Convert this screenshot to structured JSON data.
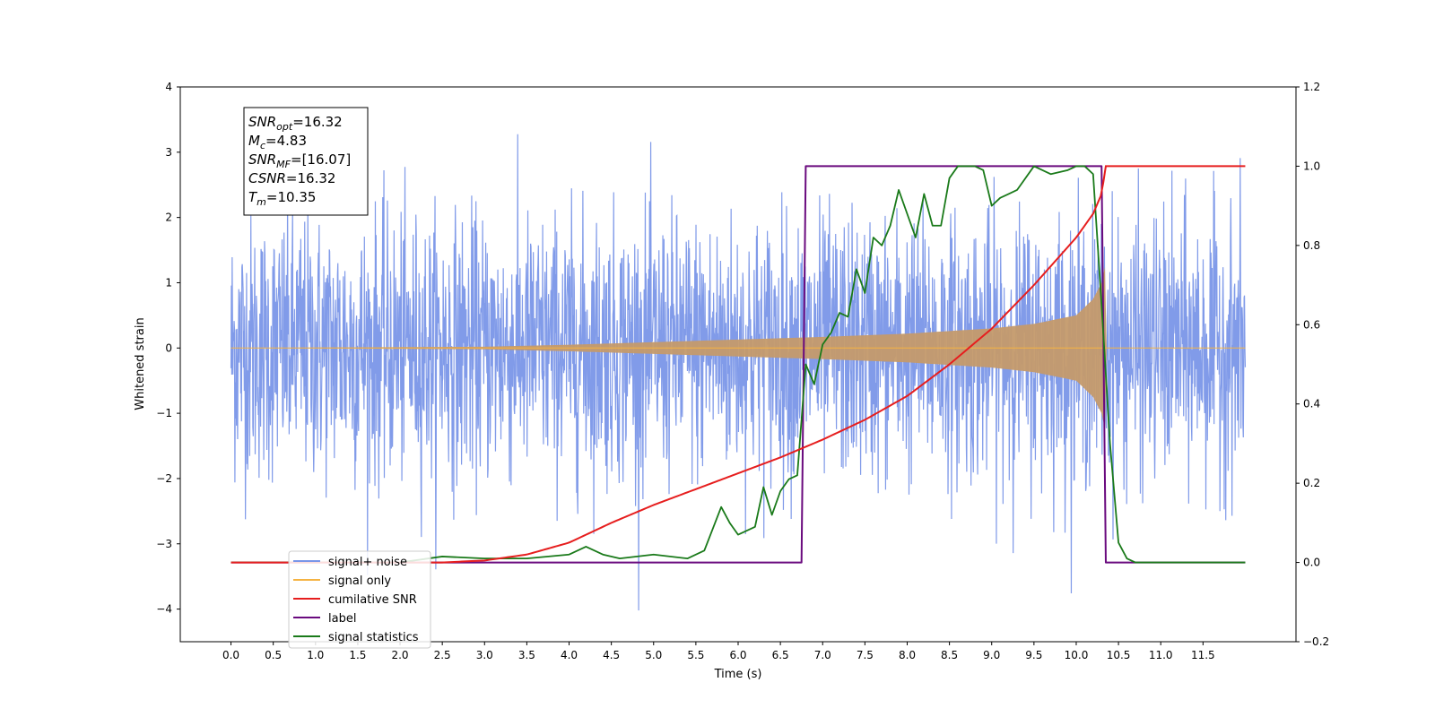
{
  "chart_data": {
    "type": "line",
    "xlabel": "Time (s)",
    "ylabel": "Whitened strain",
    "xlim": [
      -0.6,
      12.6
    ],
    "ylim_left": [
      -4.5,
      4
    ],
    "ylim_right": [
      -0.2,
      1.2
    ],
    "x_ticks": [
      "0.0",
      "0.5",
      "1.0",
      "1.5",
      "2.0",
      "2.5",
      "3.0",
      "3.5",
      "4.0",
      "4.5",
      "5.0",
      "5.5",
      "6.0",
      "6.5",
      "7.0",
      "7.5",
      "8.0",
      "8.5",
      "9.0",
      "9.5",
      "10.0",
      "10.5",
      "11.0",
      "11.5"
    ],
    "y_ticks_left": [
      "4",
      "3",
      "2",
      "1",
      "0",
      "−1",
      "−2",
      "−3",
      "−4"
    ],
    "y_ticks_right": [
      "1.2",
      "1.0",
      "0.8",
      "0.6",
      "0.4",
      "0.2",
      "0.0",
      "−0.2"
    ],
    "annotation": {
      "lines": [
        {
          "main": "SNR",
          "sub": "opt",
          "value": "=16.32"
        },
        {
          "main": "M",
          "sub": "c",
          "value": "=4.83"
        },
        {
          "main": "SNR",
          "sub": "MF",
          "value": "=[16.07]"
        },
        {
          "main": "CSNR",
          "sub": "",
          "value": "=16.32"
        },
        {
          "main": "T",
          "sub": "m",
          "value": "=10.35"
        }
      ]
    },
    "legend_position": "lower-left",
    "series": [
      {
        "name": "signal+ noise",
        "axis": "left",
        "color": "#7a96e8",
        "x_range": [
          0.0,
          12.0
        ],
        "noise_sigma": 1.0,
        "amplitude_range": [
          -4.1,
          3.6
        ]
      },
      {
        "name": "signal only",
        "axis": "left",
        "color": "#f5b342",
        "x_range": [
          0.0,
          12.0
        ],
        "envelope": {
          "x": [
            0.0,
            3.0,
            4.0,
            5.0,
            6.0,
            7.0,
            8.0,
            9.0,
            9.5,
            10.0,
            10.2,
            10.3,
            10.35,
            10.36,
            12.0
          ],
          "amplitude": [
            0.0,
            0.02,
            0.05,
            0.09,
            0.13,
            0.17,
            0.22,
            0.3,
            0.37,
            0.5,
            0.75,
            1.0,
            1.3,
            0.0,
            0.0
          ]
        }
      },
      {
        "name": "cumilative SNR",
        "axis": "right",
        "color": "#e61e1e",
        "x": [
          0.0,
          2.5,
          3.0,
          3.5,
          4.0,
          4.5,
          5.0,
          5.5,
          6.0,
          6.5,
          7.0,
          7.5,
          8.0,
          8.5,
          9.0,
          9.5,
          10.0,
          10.2,
          10.3,
          10.35,
          12.0
        ],
        "y": [
          0.0,
          0.0,
          0.005,
          0.02,
          0.05,
          0.1,
          0.145,
          0.185,
          0.225,
          0.265,
          0.31,
          0.36,
          0.42,
          0.5,
          0.59,
          0.7,
          0.82,
          0.88,
          0.93,
          1.0,
          1.0
        ]
      },
      {
        "name": "label",
        "axis": "right",
        "color": "#6a0a7e",
        "x": [
          0.0,
          6.75,
          6.8,
          10.3,
          10.35,
          12.0
        ],
        "y": [
          0.0,
          0.0,
          1.0,
          1.0,
          0.0,
          0.0
        ]
      },
      {
        "name": "signal statistics",
        "axis": "right",
        "color": "#1a7a1a",
        "x": [
          0.0,
          2.0,
          2.5,
          3.0,
          3.5,
          4.0,
          4.2,
          4.4,
          4.6,
          5.0,
          5.4,
          5.6,
          5.8,
          5.9,
          6.0,
          6.2,
          6.3,
          6.4,
          6.5,
          6.6,
          6.7,
          6.8,
          6.9,
          7.0,
          7.1,
          7.2,
          7.3,
          7.4,
          7.5,
          7.6,
          7.7,
          7.8,
          7.9,
          8.0,
          8.1,
          8.2,
          8.3,
          8.4,
          8.5,
          8.6,
          8.7,
          8.8,
          8.9,
          9.0,
          9.1,
          9.2,
          9.3,
          9.5,
          9.7,
          9.9,
          10.0,
          10.1,
          10.2,
          10.3,
          10.4,
          10.5,
          10.6,
          10.7,
          10.8,
          11.0,
          11.5,
          12.0
        ],
        "y": [
          0.0,
          0.0,
          0.015,
          0.01,
          0.01,
          0.02,
          0.04,
          0.02,
          0.01,
          0.02,
          0.01,
          0.03,
          0.14,
          0.1,
          0.07,
          0.09,
          0.19,
          0.12,
          0.18,
          0.21,
          0.22,
          0.5,
          0.45,
          0.55,
          0.58,
          0.63,
          0.62,
          0.74,
          0.68,
          0.82,
          0.8,
          0.85,
          0.94,
          0.88,
          0.82,
          0.93,
          0.85,
          0.85,
          0.97,
          1.0,
          1.0,
          1.0,
          0.99,
          0.9,
          0.92,
          0.93,
          0.94,
          1.0,
          0.98,
          0.99,
          1.0,
          1.0,
          0.98,
          0.65,
          0.3,
          0.05,
          0.01,
          0.0,
          0.0,
          0.0,
          0.0,
          0.0
        ]
      }
    ]
  }
}
